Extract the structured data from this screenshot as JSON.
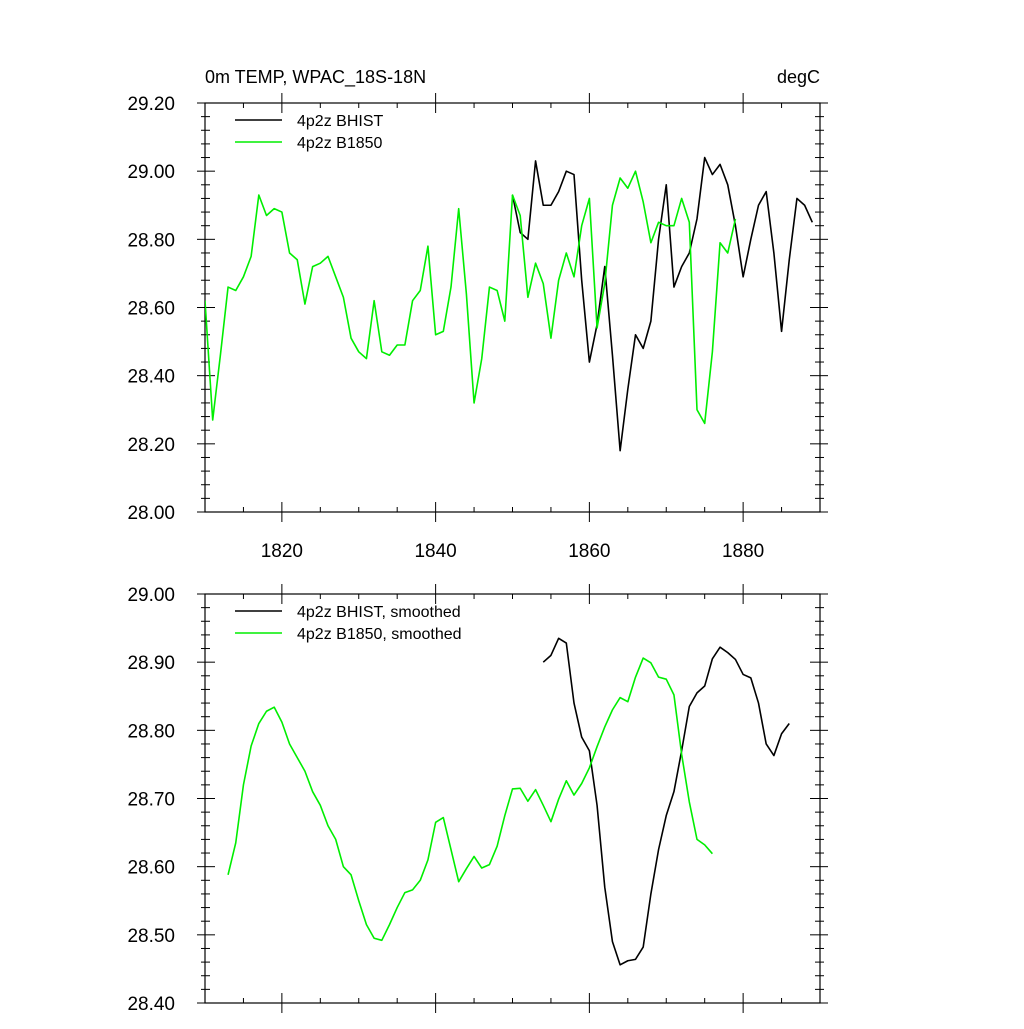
{
  "chart_data": [
    {
      "type": "line",
      "title": "0m TEMP, WPAC_18S-18N",
      "units": "degC",
      "xlim": [
        1810,
        1890
      ],
      "ylim": [
        28.0,
        29.2
      ],
      "x_ticks": [
        1820,
        1840,
        1860,
        1880
      ],
      "x_tick_labels": [
        "1820",
        "1840",
        "1860",
        "1880"
      ],
      "y_ticks": [
        28.0,
        28.2,
        28.4,
        28.6,
        28.8,
        29.0,
        29.2
      ],
      "y_tick_labels": [
        "28.00",
        "28.20",
        "28.40",
        "28.60",
        "28.80",
        "29.00",
        "29.20"
      ],
      "legend_position": "top-left",
      "series": [
        {
          "name": "4p2z BHIST",
          "color": "#000000",
          "x": [
            1850,
            1851,
            1852,
            1853,
            1854,
            1855,
            1856,
            1857,
            1858,
            1859,
            1860,
            1861,
            1862,
            1863,
            1864,
            1865,
            1866,
            1867,
            1868,
            1869,
            1870,
            1871,
            1872,
            1873,
            1874,
            1875,
            1876,
            1877,
            1878,
            1879,
            1880,
            1881,
            1882,
            1883,
            1884,
            1885,
            1886,
            1887,
            1888,
            1889
          ],
          "y": [
            28.93,
            28.82,
            28.8,
            29.03,
            28.9,
            28.9,
            28.94,
            29.0,
            28.99,
            28.68,
            28.44,
            28.55,
            28.72,
            28.46,
            28.18,
            28.36,
            28.52,
            28.48,
            28.56,
            28.8,
            28.96,
            28.66,
            28.72,
            28.76,
            28.86,
            29.04,
            28.99,
            29.02,
            28.96,
            28.84,
            28.69,
            28.8,
            28.9,
            28.94,
            28.76,
            28.53,
            28.74,
            28.92,
            28.9,
            28.85
          ]
        },
        {
          "name": "4p2z B1850",
          "color": "#00ee00",
          "x": [
            1810,
            1811,
            1812,
            1813,
            1814,
            1815,
            1816,
            1817,
            1818,
            1819,
            1820,
            1821,
            1822,
            1823,
            1824,
            1825,
            1826,
            1827,
            1828,
            1829,
            1830,
            1831,
            1832,
            1833,
            1834,
            1835,
            1836,
            1837,
            1838,
            1839,
            1840,
            1841,
            1842,
            1843,
            1844,
            1845,
            1846,
            1847,
            1848,
            1849,
            1850,
            1851,
            1852,
            1853,
            1854,
            1855,
            1856,
            1857,
            1858,
            1859,
            1860,
            1861,
            1862,
            1863,
            1864,
            1865,
            1866,
            1867,
            1868,
            1869,
            1870,
            1871,
            1872,
            1873,
            1874,
            1875,
            1876,
            1877,
            1878,
            1879
          ],
          "y": [
            28.62,
            28.27,
            28.46,
            28.66,
            28.65,
            28.69,
            28.75,
            28.93,
            28.87,
            28.89,
            28.88,
            28.76,
            28.74,
            28.61,
            28.72,
            28.73,
            28.75,
            28.69,
            28.63,
            28.51,
            28.47,
            28.45,
            28.62,
            28.47,
            28.46,
            28.49,
            28.49,
            28.62,
            28.65,
            28.78,
            28.52,
            28.53,
            28.66,
            28.89,
            28.64,
            28.32,
            28.45,
            28.66,
            28.65,
            28.56,
            28.93,
            28.87,
            28.63,
            28.73,
            28.67,
            28.51,
            28.68,
            28.76,
            28.69,
            28.84,
            28.92,
            28.54,
            28.67,
            28.9,
            28.98,
            28.95,
            29.0,
            28.91,
            28.79,
            28.85,
            28.84,
            28.84,
            28.92,
            28.85,
            28.3,
            28.26,
            28.47,
            28.79,
            28.76,
            28.86
          ]
        }
      ]
    },
    {
      "type": "line",
      "xlim": [
        1810,
        1890
      ],
      "ylim": [
        28.4,
        29.0
      ],
      "x_ticks": [
        1820,
        1840,
        1860,
        1880
      ],
      "y_ticks": [
        28.4,
        28.5,
        28.6,
        28.7,
        28.8,
        28.9,
        29.0
      ],
      "y_tick_labels": [
        "28.40",
        "28.50",
        "28.60",
        "28.70",
        "28.80",
        "28.90",
        "29.00"
      ],
      "legend_position": "top-left",
      "series": [
        {
          "name": "4p2z BHIST, smoothed",
          "color": "#000000",
          "x": [
            1854,
            1855,
            1856,
            1857,
            1858,
            1859,
            1860,
            1861,
            1862,
            1863,
            1864,
            1865,
            1866,
            1867,
            1868,
            1869,
            1870,
            1871,
            1872,
            1873,
            1874,
            1875,
            1876,
            1877,
            1878,
            1879,
            1880,
            1881,
            1882,
            1883,
            1884,
            1885,
            1886
          ],
          "y": [
            28.9,
            28.91,
            28.935,
            28.928,
            28.84,
            28.79,
            28.77,
            28.69,
            28.57,
            28.49,
            28.456,
            28.462,
            28.464,
            28.482,
            28.56,
            28.625,
            28.675,
            28.71,
            28.77,
            28.835,
            28.855,
            28.865,
            28.905,
            28.922,
            28.914,
            28.904,
            28.882,
            28.877,
            28.84,
            28.78,
            28.763,
            28.795,
            28.81
          ]
        },
        {
          "name": "4p2z B1850, smoothed",
          "color": "#00ee00",
          "x": [
            1813,
            1814,
            1815,
            1816,
            1817,
            1818,
            1819,
            1820,
            1821,
            1822,
            1823,
            1824,
            1825,
            1826,
            1827,
            1828,
            1829,
            1830,
            1831,
            1832,
            1833,
            1834,
            1835,
            1836,
            1837,
            1838,
            1839,
            1840,
            1841,
            1842,
            1843,
            1844,
            1845,
            1846,
            1847,
            1848,
            1849,
            1850,
            1851,
            1852,
            1853,
            1854,
            1855,
            1856,
            1857,
            1858,
            1859,
            1860,
            1861,
            1862,
            1863,
            1864,
            1865,
            1866,
            1867,
            1868,
            1869,
            1870,
            1871,
            1872,
            1873,
            1874,
            1875,
            1876
          ],
          "y": [
            28.588,
            28.635,
            28.72,
            28.777,
            28.81,
            28.828,
            28.834,
            28.812,
            28.78,
            28.76,
            28.74,
            28.71,
            28.69,
            28.66,
            28.64,
            28.6,
            28.588,
            28.55,
            28.515,
            28.495,
            28.492,
            28.515,
            28.54,
            28.562,
            28.566,
            28.58,
            28.61,
            28.665,
            28.672,
            28.625,
            28.578,
            28.597,
            28.615,
            28.598,
            28.603,
            28.63,
            28.675,
            28.714,
            28.715,
            28.696,
            28.713,
            28.69,
            28.666,
            28.699,
            28.726,
            28.705,
            28.722,
            28.745,
            28.776,
            28.805,
            28.83,
            28.848,
            28.842,
            28.878,
            28.906,
            28.899,
            28.878,
            28.875,
            28.852,
            28.765,
            28.695,
            28.64,
            28.632,
            28.619
          ]
        }
      ]
    }
  ]
}
